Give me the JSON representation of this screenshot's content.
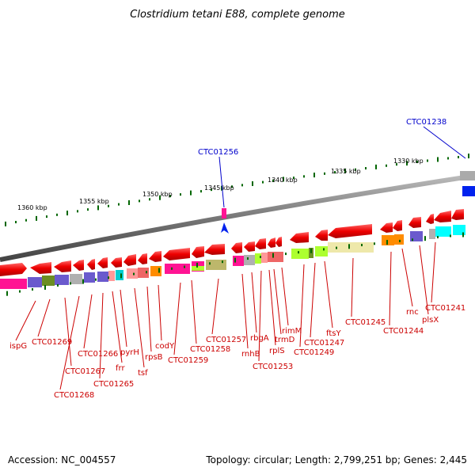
{
  "title": "Clostridium tetani E88, complete genome",
  "footer": {
    "accession": "Accession: NC_004557",
    "summary": "Topology: circular; Length: 2,799,251 bp; Genes: 2,445"
  },
  "colors": {
    "gene_arrow": "#ee0000",
    "gene_label": "#cc0000",
    "callout": "#0000cc",
    "backbone": "#888888",
    "tick": "#006600"
  },
  "axis": {
    "unit": "kbp",
    "ticks": [
      "1360 kbp",
      "1355 kbp",
      "1350 kbp",
      "1345 kbp",
      "1340 kbp",
      "1335 kbp",
      "1330 kbp"
    ]
  },
  "callouts": [
    "CTC01238",
    "CTC01256"
  ],
  "gene_labels": [
    "ispG",
    "CTC01269",
    "CTC01267",
    "CTC01268",
    "CTC01266",
    "CTC01265",
    "frr",
    "pyrH",
    "tsf",
    "rpsB",
    "codY",
    "CTC01259",
    "CTC01258",
    "CTC01257",
    "rnhB",
    "rbgA",
    "CTC01253",
    "rplS",
    "trmD",
    "rimM",
    "CTC01249",
    "CTC01247",
    "ftsY",
    "CTC01245",
    "CTC01244",
    "rnc",
    "plsX",
    "CTC01241"
  ]
}
